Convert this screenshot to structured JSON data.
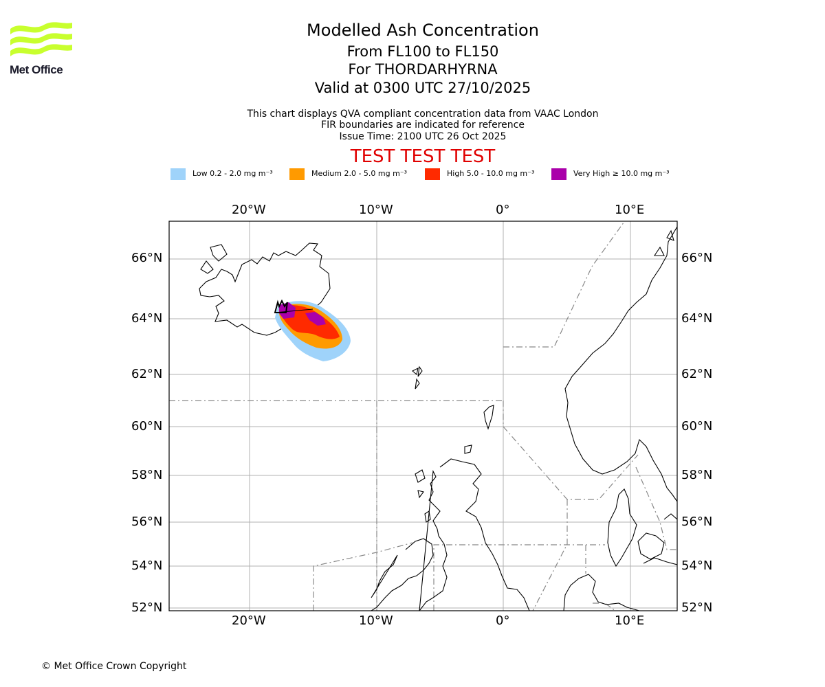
{
  "logo": {
    "text": "Met Office",
    "icon": "met-office-wave-logo",
    "color": "#c8ff2e"
  },
  "title": {
    "line1": "Modelled Ash Concentration",
    "line2": "From FL100 to FL150",
    "line3": "For THORDARHYRNA",
    "line4": "Valid at 0300 UTC 27/10/2025"
  },
  "subtitle": {
    "line1": "This chart displays QVA compliant concentration data from VAAC London",
    "line2": "FIR boundaries are indicated for reference",
    "line3": "Issue Time: 2100 UTC 26 Oct 2025"
  },
  "test_banner": "TEST TEST TEST",
  "legend": [
    {
      "label": "Low 0.2 - 2.0 mg m⁻³",
      "color": "#9fd3fa"
    },
    {
      "label": "Medium 2.0 - 5.0 mg m⁻³",
      "color": "#ff9a00"
    },
    {
      "label": "High 5.0 - 10.0 mg m⁻³",
      "color": "#ff2a00"
    },
    {
      "label": "Very High ≥ 10.0 mg m⁻³",
      "color": "#aa00aa"
    }
  ],
  "map": {
    "lon_ticks": [
      "20°W",
      "10°W",
      "0°",
      "10°E"
    ],
    "lat_ticks": [
      "66°N",
      "64°N",
      "62°N",
      "60°N",
      "58°N",
      "56°N",
      "54°N",
      "52°N"
    ],
    "volcano": "THORDARHYRNA"
  },
  "copyright": "© Met Office Crown Copyright"
}
